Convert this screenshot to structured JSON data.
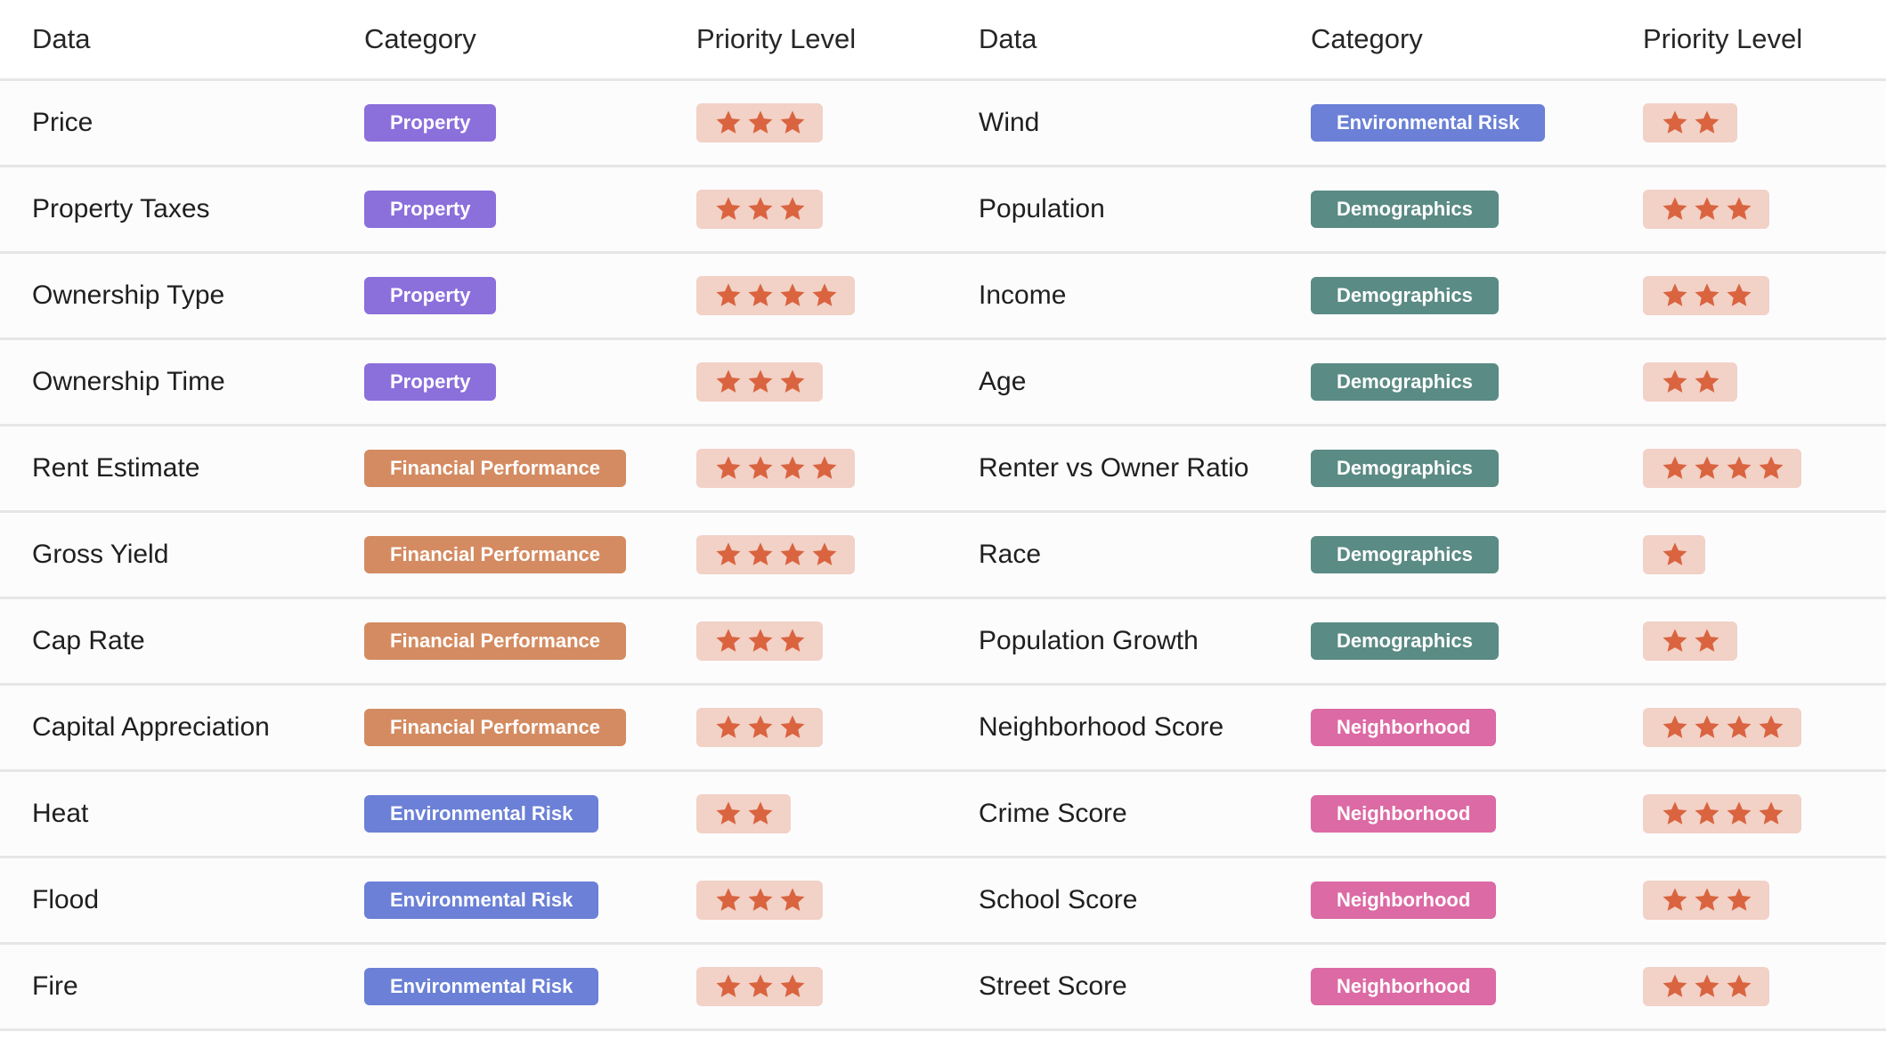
{
  "colors": {
    "Property": "#8b6fdb",
    "Financial Performance": "#d48b61",
    "Environmental Risk": "#6b80d6",
    "Demographics": "#5a8b84",
    "Neighborhood": "#dc6aa4",
    "star": "#d9643f",
    "star_bg": "#f2d1c7"
  },
  "icons": {
    "priority": "star-icon"
  },
  "headers": [
    "Data",
    "Category",
    "Priority Level",
    "Data",
    "Category",
    "Priority Level"
  ],
  "rows": [
    {
      "left": {
        "data": "Price",
        "category": "Property",
        "stars": 3
      },
      "right": {
        "data": "Wind",
        "category": "Environmental Risk",
        "stars": 2
      }
    },
    {
      "left": {
        "data": "Property Taxes",
        "category": "Property",
        "stars": 3
      },
      "right": {
        "data": "Population",
        "category": "Demographics",
        "stars": 3
      }
    },
    {
      "left": {
        "data": "Ownership Type",
        "category": "Property",
        "stars": 4
      },
      "right": {
        "data": "Income",
        "category": "Demographics",
        "stars": 3
      }
    },
    {
      "left": {
        "data": "Ownership Time",
        "category": "Property",
        "stars": 3
      },
      "right": {
        "data": "Age",
        "category": "Demographics",
        "stars": 2
      }
    },
    {
      "left": {
        "data": "Rent Estimate",
        "category": "Financial Performance",
        "stars": 4
      },
      "right": {
        "data": "Renter vs Owner Ratio",
        "category": "Demographics",
        "stars": 4
      }
    },
    {
      "left": {
        "data": "Gross Yield",
        "category": "Financial Performance",
        "stars": 4
      },
      "right": {
        "data": "Race",
        "category": "Demographics",
        "stars": 1
      }
    },
    {
      "left": {
        "data": "Cap Rate",
        "category": "Financial Performance",
        "stars": 3
      },
      "right": {
        "data": "Population Growth",
        "category": "Demographics",
        "stars": 2
      }
    },
    {
      "left": {
        "data": "Capital Appreciation",
        "category": "Financial Performance",
        "stars": 3
      },
      "right": {
        "data": "Neighborhood Score",
        "category": "Neighborhood",
        "stars": 4
      }
    },
    {
      "left": {
        "data": "Heat",
        "category": "Environmental Risk",
        "stars": 2
      },
      "right": {
        "data": "Crime Score",
        "category": "Neighborhood",
        "stars": 4
      }
    },
    {
      "left": {
        "data": "Flood",
        "category": "Environmental Risk",
        "stars": 3
      },
      "right": {
        "data": "School Score",
        "category": "Neighborhood",
        "stars": 3
      }
    },
    {
      "left": {
        "data": "Fire",
        "category": "Environmental Risk",
        "stars": 3
      },
      "right": {
        "data": "Street Score",
        "category": "Neighborhood",
        "stars": 3
      }
    }
  ]
}
